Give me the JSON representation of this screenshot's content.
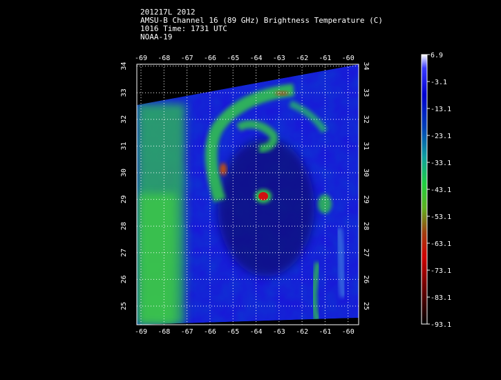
{
  "header": {
    "line1": "201217L 2012",
    "line2": "AMSU-B Channel 16 (89 GHz) Brightness Temperature (C)",
    "line3": "1016 Time: 1731 UTC",
    "line4": "NOAA-19"
  },
  "map": {
    "lon_ticks": [
      "-69",
      "-68",
      "-67",
      "-66",
      "-65",
      "-64",
      "-63",
      "-62",
      "-61",
      "-60"
    ],
    "lat_ticks": [
      "25",
      "26",
      "27",
      "28",
      "29",
      "30",
      "31",
      "32",
      "33",
      "34"
    ]
  },
  "colorbar": {
    "labels": [
      "6.9",
      "-3.1",
      "-13.1",
      "-23.1",
      "-33.1",
      "-43.1",
      "-53.1",
      "-63.1",
      "-73.1",
      "-83.1",
      "-93.1"
    ],
    "colors": [
      "#ffffff",
      "#2020ff",
      "#0000c8",
      "#0050c0",
      "#10a0a0",
      "#20d040",
      "#70b020",
      "#a04010",
      "#d00000",
      "#600000",
      "#000000"
    ]
  }
}
